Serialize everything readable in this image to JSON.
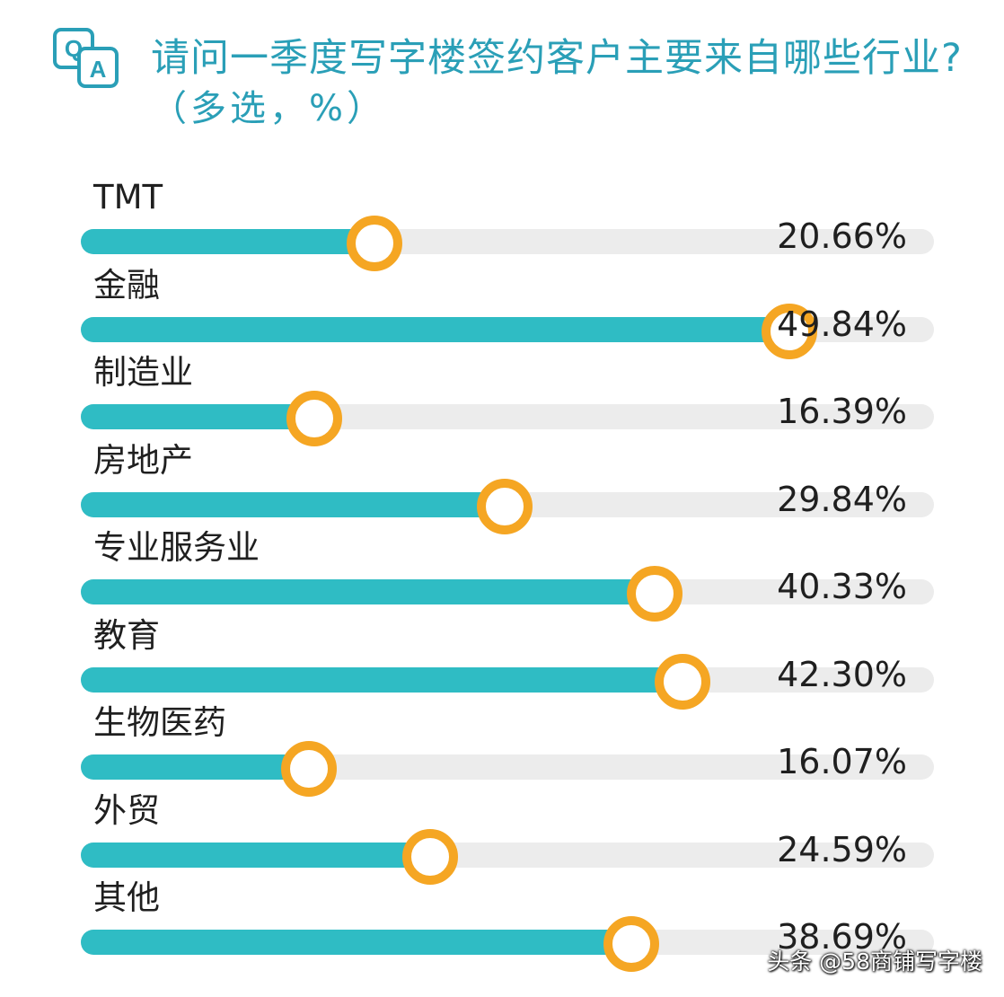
{
  "header": {
    "icon_q": "Q",
    "icon_a": "A",
    "title": "请问一季度写字楼签约客户主要来自哪些行业?",
    "subtitle": "（多选，%）"
  },
  "colors": {
    "title": "#2a9fb7",
    "fill": "#2fbcc4",
    "track": "#ececec",
    "knob": "#f5a623"
  },
  "chart_data": {
    "type": "bar",
    "orientation": "horizontal",
    "title": "请问一季度写字楼签约客户主要来自哪些行业?",
    "subtitle": "（多选，%）",
    "categories": [
      "TMT",
      "金融",
      "制造业",
      "房地产",
      "专业服务业",
      "教育",
      "生物医药",
      "外贸",
      "其他"
    ],
    "values": [
      20.66,
      49.84,
      16.39,
      29.84,
      40.33,
      42.3,
      16.07,
      24.59,
      38.69
    ],
    "value_labels": [
      "20.66%",
      "49.84%",
      "16.39%",
      "29.84%",
      "40.33%",
      "42.30%",
      "16.07%",
      "24.59%",
      "38.69%"
    ],
    "xlim": [
      0,
      60
    ],
    "grid": false,
    "legend": "none"
  },
  "watermark": "头条 @58商铺写字楼"
}
